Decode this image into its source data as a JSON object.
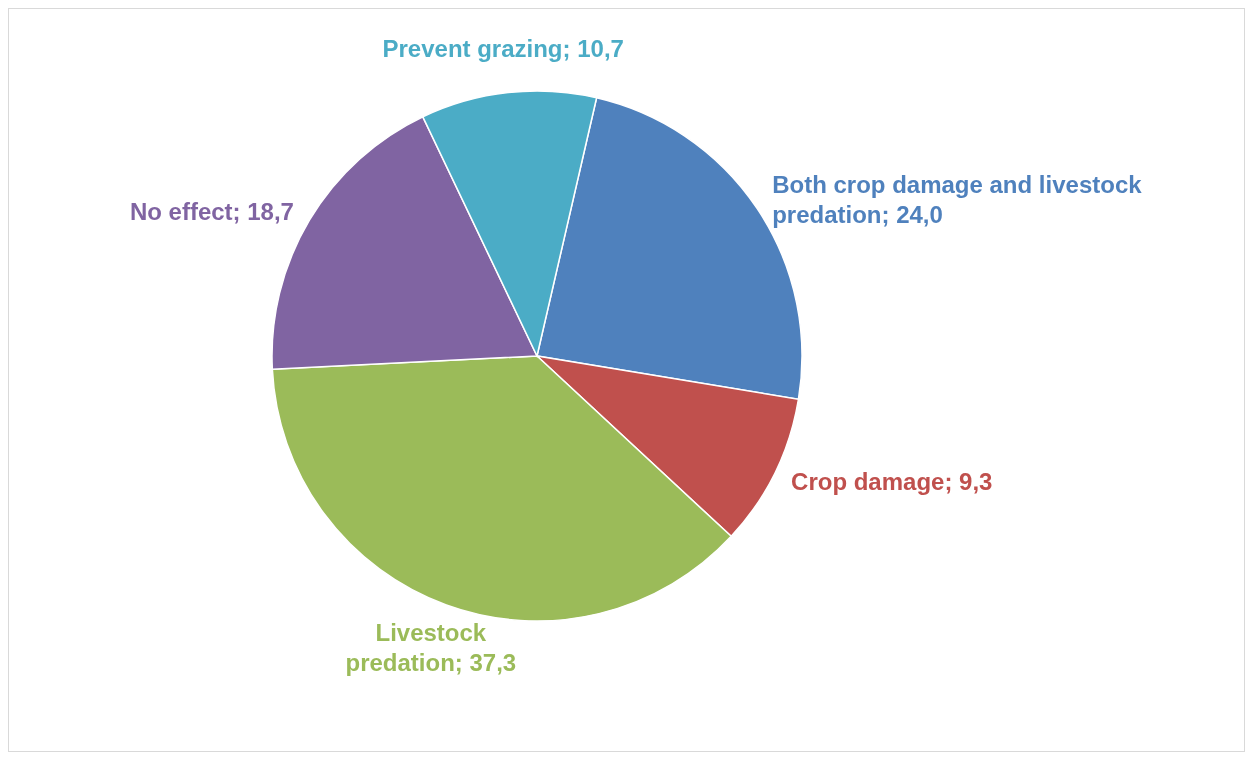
{
  "chart_data": {
    "type": "pie",
    "categories": [
      "Both crop damage and livestock predation",
      "Crop damage",
      "Livestock predation",
      "No effect",
      "Prevent grazing"
    ],
    "values": [
      24.0,
      9.3,
      37.3,
      18.7,
      10.7
    ],
    "value_labels": [
      "24,0",
      "9,3",
      "37,3",
      "18,7",
      "10,7"
    ],
    "colors": [
      "#4f81bd",
      "#c0504d",
      "#9bbb59",
      "#8064a2",
      "#4bacc6"
    ],
    "legend": false
  }
}
